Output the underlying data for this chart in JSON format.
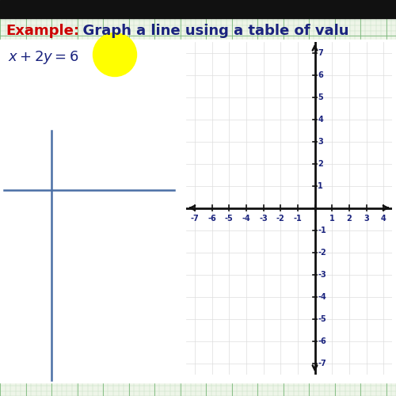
{
  "bg_color_light": "#eef5e8",
  "graph_paper_minor_color": "#b8d8b8",
  "graph_paper_major_color": "#7ab87a",
  "title_example": "Example:",
  "title_example_color": "#cc0000",
  "title_rest": "  Graph a line using a table of valu",
  "title_rest_color": "#1a237e",
  "equation_color": "#1a237e",
  "table_cross_color": "#4a6fa5",
  "yellow_circle_color": "#ffff00",
  "right_panel_bg": "#ffffff",
  "left_panel_bg": "#ffffff",
  "axis_color": "#111111",
  "tick_label_color": "#1a237e",
  "grid_color": "#dddddd",
  "font_size_title": 13,
  "font_size_equation": 12,
  "font_size_tick": 7
}
